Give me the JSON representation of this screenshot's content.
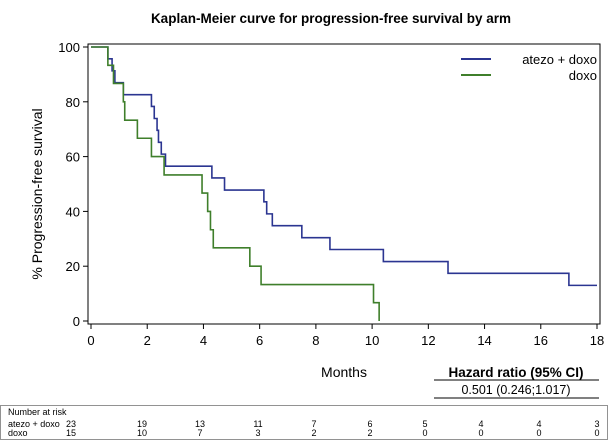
{
  "chart_data": {
    "type": "line",
    "title": "Kaplan-Meier curve for progression-free survival by arm",
    "xlabel": "Months",
    "ylabel": "% Progression-free survival",
    "xlim": [
      0,
      18
    ],
    "ylim": [
      0,
      100
    ],
    "x_ticks": [
      "0",
      "2",
      "4",
      "6",
      "8",
      "10",
      "12",
      "14",
      "16",
      "18"
    ],
    "y_ticks": [
      "0",
      "20",
      "40",
      "60",
      "80",
      "100"
    ],
    "legend_position": "top-right",
    "series": [
      {
        "name": "atezo + doxo",
        "color": "#2b3591",
        "steps": [
          [
            0,
            100
          ],
          [
            0.6,
            95.7
          ],
          [
            0.75,
            91.3
          ],
          [
            0.85,
            87
          ],
          [
            1.15,
            82.6
          ],
          [
            2.15,
            78.3
          ],
          [
            2.25,
            73.9
          ],
          [
            2.35,
            69.6
          ],
          [
            2.4,
            65.2
          ],
          [
            2.5,
            60.9
          ],
          [
            2.65,
            56.5
          ],
          [
            4.3,
            52.2
          ],
          [
            4.75,
            47.8
          ],
          [
            6.15,
            43.5
          ],
          [
            6.25,
            39.1
          ],
          [
            6.45,
            34.8
          ],
          [
            7.5,
            30.4
          ],
          [
            8.5,
            26.1
          ],
          [
            10.4,
            21.7
          ],
          [
            12.7,
            17.4
          ],
          [
            17,
            13
          ],
          [
            18,
            13
          ]
        ]
      },
      {
        "name": "doxo",
        "color": "#3f7f2b",
        "steps": [
          [
            0,
            100
          ],
          [
            0.6,
            93.3
          ],
          [
            0.8,
            86.7
          ],
          [
            1.15,
            80
          ],
          [
            1.2,
            73.3
          ],
          [
            1.65,
            66.7
          ],
          [
            2.15,
            60
          ],
          [
            2.6,
            53.3
          ],
          [
            3.95,
            46.7
          ],
          [
            4.15,
            40
          ],
          [
            4.25,
            33.3
          ],
          [
            4.35,
            26.7
          ],
          [
            5.65,
            20
          ],
          [
            6.05,
            13.3
          ],
          [
            10.05,
            6.7
          ],
          [
            10.25,
            0
          ]
        ]
      }
    ],
    "annotation": {
      "hr_title": "Hazard ratio (95% CI)",
      "hr_value": "0.501 (0.246;1.017)"
    },
    "risk_table": {
      "title": "Number at risk",
      "rows": [
        {
          "name": "atezo + doxo",
          "values": [
            "23",
            "19",
            "13",
            "11",
            "7",
            "6",
            "5",
            "4",
            "4",
            "3"
          ]
        },
        {
          "name": "doxo",
          "values": [
            "15",
            "10",
            "7",
            "3",
            "2",
            "2",
            "0",
            "0",
            "0",
            "0"
          ]
        }
      ]
    }
  }
}
